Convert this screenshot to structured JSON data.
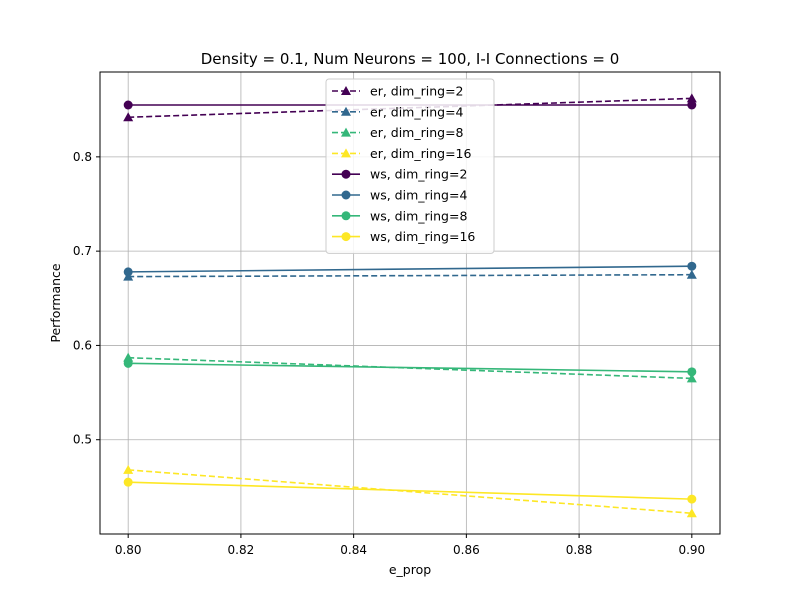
{
  "chart_data": {
    "type": "line",
    "title": "Density = 0.1, Num Neurons = 100, I-I Connections = 0",
    "xlabel": "e_prop",
    "ylabel": "Performance",
    "x": [
      0.8,
      0.9
    ],
    "xlim": [
      0.795,
      0.905
    ],
    "ylim": [
      0.4,
      0.89
    ],
    "xticks": [
      "0.80",
      "0.82",
      "0.84",
      "0.86",
      "0.88",
      "0.90"
    ],
    "yticks": [
      "0.5",
      "0.6",
      "0.7",
      "0.8"
    ],
    "grid": true,
    "legend_position": "upper center",
    "series": [
      {
        "name": "er, dim_ring=2",
        "values": [
          0.842,
          0.862
        ],
        "color": "#440154",
        "linestyle": "dashed",
        "marker": "triangle"
      },
      {
        "name": "er, dim_ring=4",
        "values": [
          0.673,
          0.675
        ],
        "color": "#31688e",
        "linestyle": "dashed",
        "marker": "triangle"
      },
      {
        "name": "er, dim_ring=8",
        "values": [
          0.587,
          0.565
        ],
        "color": "#35b779",
        "linestyle": "dashed",
        "marker": "triangle"
      },
      {
        "name": "er, dim_ring=16",
        "values": [
          0.468,
          0.422
        ],
        "color": "#fde725",
        "linestyle": "dashed",
        "marker": "triangle"
      },
      {
        "name": "ws, dim_ring=2",
        "values": [
          0.855,
          0.855
        ],
        "color": "#440154",
        "linestyle": "solid",
        "marker": "circle"
      },
      {
        "name": "ws, dim_ring=4",
        "values": [
          0.678,
          0.684
        ],
        "color": "#31688e",
        "linestyle": "solid",
        "marker": "circle"
      },
      {
        "name": "ws, dim_ring=8",
        "values": [
          0.581,
          0.572
        ],
        "color": "#35b779",
        "linestyle": "solid",
        "marker": "circle"
      },
      {
        "name": "ws, dim_ring=16",
        "values": [
          0.455,
          0.437
        ],
        "color": "#fde725",
        "linestyle": "solid",
        "marker": "circle"
      }
    ]
  }
}
